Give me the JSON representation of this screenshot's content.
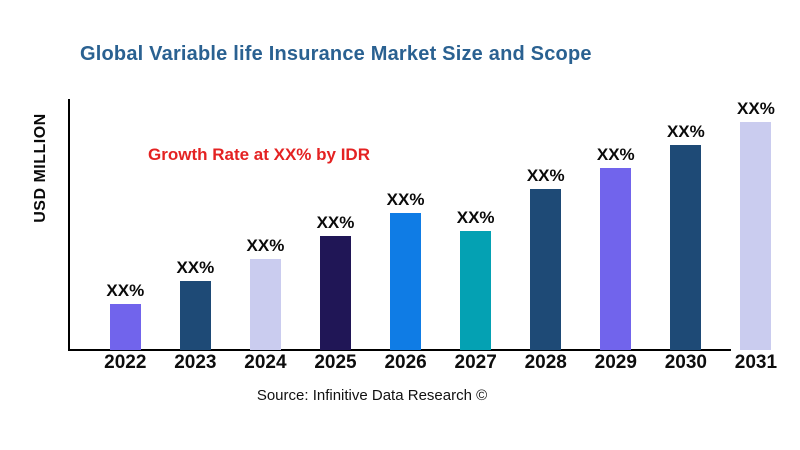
{
  "colors": {
    "title": "#2A6191",
    "annotation": "#E42222",
    "axis": "#000000"
  },
  "chart_data": {
    "type": "bar",
    "title": "Global Variable life Insurance Market Size and Scope",
    "xlabel": "",
    "ylabel": "USD MILLION",
    "annotation": "Growth Rate at XX% by IDR",
    "source": "Source: Infinitive Data Research ©",
    "grid": false,
    "legend": false,
    "categories": [
      "2022",
      "2023",
      "2024",
      "2025",
      "2026",
      "2027",
      "2028",
      "2029",
      "2030",
      "2031"
    ],
    "values": [
      20.3,
      30.4,
      39.9,
      50.0,
      60.2,
      52.3,
      70.5,
      79.8,
      90.0,
      100.0
    ],
    "values_note": "Numeric values are masked as XX% in the image; values are relative bar heights (2031 = 100)",
    "bar_value_labels": [
      "XX%",
      "XX%",
      "XX%",
      "XX%",
      "XX%",
      "XX%",
      "XX%",
      "XX%",
      "XX%",
      "XX%"
    ],
    "bar_colors": [
      "#7164EC",
      "#1E4A76",
      "#CACCEF",
      "#201656",
      "#0F7CE5",
      "#04A1B3",
      "#1E4A76",
      "#7164EC",
      "#1E4A76",
      "#CACCEF"
    ]
  }
}
